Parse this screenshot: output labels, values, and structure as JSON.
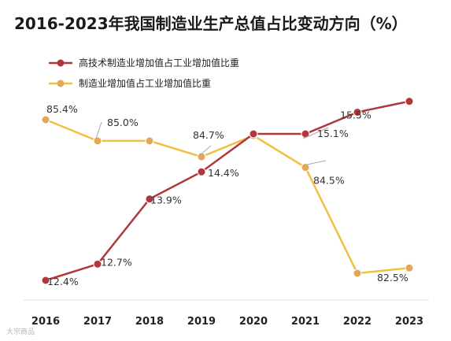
{
  "chart_data": {
    "type": "line",
    "title": "2016-2023年我国制造业生产总值占比变动方向（%）",
    "categories": [
      "2016",
      "2017",
      "2018",
      "2019",
      "2020",
      "2021",
      "2022",
      "2023"
    ],
    "series": [
      {
        "name": "高技术制造业增加值占工业增加值比重",
        "color": "#b0383c",
        "values": [
          12.4,
          12.7,
          13.9,
          14.4,
          15.1,
          15.1,
          15.5,
          15.7
        ],
        "labels": [
          "12.4%",
          "12.7%",
          "13.9%",
          "14.4%",
          null,
          "15.1%",
          "15.5%",
          null
        ]
      },
      {
        "name": "制造业增加值占工业增加值比重",
        "color": "#f2c040",
        "marker_color": "#e3a75b",
        "values": [
          85.4,
          85.0,
          85.0,
          84.7,
          85.1,
          84.5,
          82.5,
          82.6
        ],
        "labels": [
          "85.4%",
          "85.0%",
          null,
          "84.7%",
          null,
          "84.5%",
          "82.5%",
          null
        ]
      }
    ],
    "legend_position": "top-left",
    "grid": false
  },
  "watermark": "大宗商品"
}
